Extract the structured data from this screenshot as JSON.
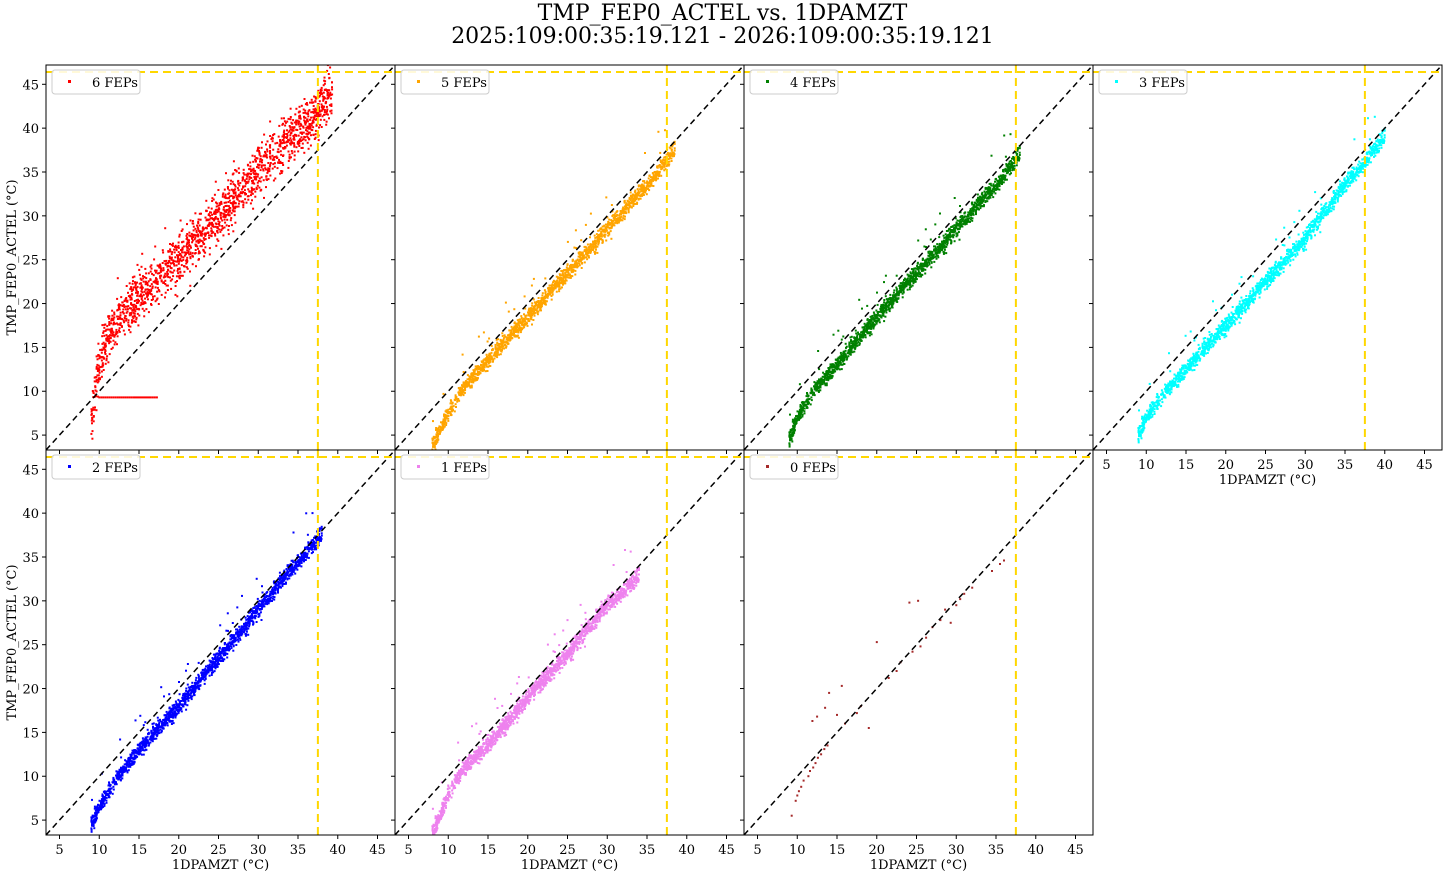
{
  "figure": {
    "title_line1": "TMP_FEP0_ACTEL vs. 1DPAMZT",
    "title_line2": "2025:109:00:35:19.121 - 2026:109:00:35:19.121"
  },
  "colors": {
    "reference_line": "#000000",
    "limit_line": "#ffd700",
    "axes": "#000000"
  },
  "chart_data": [
    {
      "type": "scatter",
      "legend": "6 FEPs",
      "color": "#ff0000",
      "xlabel": "",
      "ylabel": "TMP_FEP0_ACTEL (°C)",
      "xlim": [
        3.3,
        47.2
      ],
      "ylim": [
        3.3,
        47.2
      ],
      "xticks": [],
      "yticks": [
        5,
        10,
        15,
        20,
        25,
        30,
        35,
        40,
        45
      ],
      "reference_line": "y = x",
      "limit_lines": {
        "x": 37.5,
        "y": 47.2
      },
      "legend_position": "upper-left",
      "data_trend": [
        {
          "x": 9.0,
          "y": 6.5
        },
        {
          "x": 9.5,
          "y": 10.5
        },
        {
          "x": 10.0,
          "y": 13.0
        },
        {
          "x": 11.0,
          "y": 16.0
        },
        {
          "x": 12.0,
          "y": 17.5
        },
        {
          "x": 14.0,
          "y": 20.0
        },
        {
          "x": 17.0,
          "y": 22.5
        },
        {
          "x": 20.0,
          "y": 25.0
        },
        {
          "x": 24.0,
          "y": 29.0
        },
        {
          "x": 28.0,
          "y": 33.0
        },
        {
          "x": 32.0,
          "y": 37.0
        },
        {
          "x": 36.0,
          "y": 40.5
        },
        {
          "x": 39.3,
          "y": 44.0
        }
      ],
      "flat_segment": {
        "x": [
          10.0,
          17.3
        ],
        "y": 9.3
      }
    },
    {
      "type": "scatter",
      "legend": "5 FEPs",
      "color": "#ffa500",
      "xlabel": "",
      "ylabel": "",
      "xlim": [
        3.3,
        47.2
      ],
      "ylim": [
        3.3,
        47.2
      ],
      "xticks": [],
      "yticks": [],
      "reference_line": "y = x",
      "limit_lines": {
        "x": 37.5,
        "y": 47.2
      },
      "legend_position": "upper-left",
      "data_trend": [
        {
          "x": 8.0,
          "y": 3.8
        },
        {
          "x": 10.0,
          "y": 7.5
        },
        {
          "x": 12.0,
          "y": 10.5
        },
        {
          "x": 15.0,
          "y": 13.5
        },
        {
          "x": 20.0,
          "y": 18.5
        },
        {
          "x": 25.0,
          "y": 23.5
        },
        {
          "x": 30.0,
          "y": 28.5
        },
        {
          "x": 35.0,
          "y": 33.5
        },
        {
          "x": 38.5,
          "y": 37.5
        }
      ]
    },
    {
      "type": "scatter",
      "legend": "4 FEPs",
      "color": "#008000",
      "xlabel": "",
      "ylabel": "",
      "xlim": [
        3.3,
        47.2
      ],
      "ylim": [
        3.3,
        47.2
      ],
      "xticks": [],
      "yticks": [],
      "reference_line": "y = x",
      "limit_lines": {
        "x": 37.5,
        "y": 47.2
      },
      "legend_position": "upper-left",
      "data_trend": [
        {
          "x": 9.0,
          "y": 4.5
        },
        {
          "x": 10.0,
          "y": 7.0
        },
        {
          "x": 12.0,
          "y": 10.0
        },
        {
          "x": 15.0,
          "y": 13.0
        },
        {
          "x": 20.0,
          "y": 18.5
        },
        {
          "x": 25.0,
          "y": 23.5
        },
        {
          "x": 30.0,
          "y": 28.5
        },
        {
          "x": 35.0,
          "y": 33.5
        },
        {
          "x": 38.0,
          "y": 37.0
        }
      ]
    },
    {
      "type": "scatter",
      "legend": "3 FEPs",
      "color": "#00ffff",
      "xlabel": "1DPAMZT (°C)",
      "ylabel": "",
      "xlim": [
        3.3,
        47.2
      ],
      "ylim": [
        3.3,
        47.2
      ],
      "xticks": [
        5,
        10,
        15,
        20,
        25,
        30,
        35,
        40,
        45
      ],
      "yticks": [],
      "reference_line": "y = x",
      "limit_lines": {
        "x": 37.5,
        "y": 47.2
      },
      "legend_position": "upper-left",
      "data_trend": [
        {
          "x": 9.0,
          "y": 5.0
        },
        {
          "x": 10.0,
          "y": 7.0
        },
        {
          "x": 12.0,
          "y": 9.5
        },
        {
          "x": 15.0,
          "y": 12.5
        },
        {
          "x": 20.0,
          "y": 17.5
        },
        {
          "x": 25.0,
          "y": 22.5
        },
        {
          "x": 30.0,
          "y": 27.5
        },
        {
          "x": 35.0,
          "y": 33.5
        },
        {
          "x": 40.0,
          "y": 39.0
        }
      ]
    },
    {
      "type": "scatter",
      "legend": "2 FEPs",
      "color": "#0000ff",
      "xlabel": "1DPAMZT (°C)",
      "ylabel": "TMP_FEP0_ACTEL (°C)",
      "xlim": [
        3.3,
        47.2
      ],
      "ylim": [
        3.3,
        47.2
      ],
      "xticks": [
        5,
        10,
        15,
        20,
        25,
        30,
        35,
        40,
        45
      ],
      "yticks": [
        5,
        10,
        15,
        20,
        25,
        30,
        35,
        40,
        45
      ],
      "reference_line": "y = x",
      "limit_lines": {
        "x": 37.5,
        "y": 47.2
      },
      "legend_position": "upper-left",
      "data_trend": [
        {
          "x": 9.0,
          "y": 4.5
        },
        {
          "x": 10.0,
          "y": 6.5
        },
        {
          "x": 12.0,
          "y": 9.5
        },
        {
          "x": 15.0,
          "y": 13.0
        },
        {
          "x": 20.0,
          "y": 18.0
        },
        {
          "x": 25.0,
          "y": 23.5
        },
        {
          "x": 30.0,
          "y": 29.0
        },
        {
          "x": 35.0,
          "y": 34.5
        },
        {
          "x": 38.0,
          "y": 37.5
        }
      ]
    },
    {
      "type": "scatter",
      "legend": "1 FEPs",
      "color": "#ee82ee",
      "xlabel": "1DPAMZT (°C)",
      "ylabel": "",
      "xlim": [
        3.3,
        47.2
      ],
      "ylim": [
        3.3,
        47.2
      ],
      "xticks": [
        5,
        10,
        15,
        20,
        25,
        30,
        35,
        40,
        45
      ],
      "yticks": [],
      "reference_line": "y = x",
      "limit_lines": {
        "x": 37.5,
        "y": 47.2
      },
      "legend_position": "upper-left",
      "data_trend": [
        {
          "x": 8.0,
          "y": 3.5
        },
        {
          "x": 9.0,
          "y": 5.5
        },
        {
          "x": 10.0,
          "y": 8.0
        },
        {
          "x": 12.0,
          "y": 11.0
        },
        {
          "x": 15.0,
          "y": 13.5
        },
        {
          "x": 20.0,
          "y": 19.0
        },
        {
          "x": 25.0,
          "y": 24.0
        },
        {
          "x": 30.0,
          "y": 29.5
        },
        {
          "x": 34.0,
          "y": 32.8
        }
      ]
    },
    {
      "type": "scatter",
      "legend": "0 FEPs",
      "color": "#a52a2a",
      "xlabel": "1DPAMZT (°C)",
      "ylabel": "",
      "xlim": [
        3.3,
        47.2
      ],
      "ylim": [
        3.3,
        47.2
      ],
      "xticks": [
        5,
        10,
        15,
        20,
        25,
        30,
        35,
        40,
        45
      ],
      "yticks": [],
      "reference_line": "y = x",
      "limit_lines": {
        "x": 37.5,
        "y": 47.2
      },
      "legend_position": "upper-left",
      "points": [
        {
          "x": 9.3,
          "y": 5.5
        },
        {
          "x": 9.8,
          "y": 7.2
        },
        {
          "x": 10.0,
          "y": 7.8
        },
        {
          "x": 10.2,
          "y": 8.3
        },
        {
          "x": 10.5,
          "y": 8.8
        },
        {
          "x": 10.8,
          "y": 9.5
        },
        {
          "x": 11.4,
          "y": 10.0
        },
        {
          "x": 11.6,
          "y": 10.6
        },
        {
          "x": 12.0,
          "y": 11.0
        },
        {
          "x": 12.3,
          "y": 11.5
        },
        {
          "x": 12.6,
          "y": 12.1
        },
        {
          "x": 13.0,
          "y": 12.5
        },
        {
          "x": 13.4,
          "y": 13.1
        },
        {
          "x": 13.8,
          "y": 13.5
        },
        {
          "x": 11.9,
          "y": 16.3
        },
        {
          "x": 12.5,
          "y": 16.8
        },
        {
          "x": 13.5,
          "y": 17.8
        },
        {
          "x": 14.0,
          "y": 19.5
        },
        {
          "x": 15.6,
          "y": 20.3
        },
        {
          "x": 15.0,
          "y": 17.0
        },
        {
          "x": 16.0,
          "y": 16.0
        },
        {
          "x": 17.5,
          "y": 17.2
        },
        {
          "x": 18.0,
          "y": 18.0
        },
        {
          "x": 19.0,
          "y": 15.5
        },
        {
          "x": 20.0,
          "y": 25.3
        },
        {
          "x": 21.5,
          "y": 21.2
        },
        {
          "x": 22.5,
          "y": 22.0
        },
        {
          "x": 23.0,
          "y": 23.0
        },
        {
          "x": 24.1,
          "y": 29.8
        },
        {
          "x": 25.2,
          "y": 30.0
        },
        {
          "x": 24.5,
          "y": 24.2
        },
        {
          "x": 25.5,
          "y": 24.8
        },
        {
          "x": 26.2,
          "y": 25.8
        },
        {
          "x": 27.0,
          "y": 27.0
        },
        {
          "x": 28.0,
          "y": 27.8
        },
        {
          "x": 28.6,
          "y": 29.0
        },
        {
          "x": 29.3,
          "y": 27.5
        },
        {
          "x": 30.0,
          "y": 29.5
        },
        {
          "x": 30.5,
          "y": 30.2
        },
        {
          "x": 31.0,
          "y": 30.8
        },
        {
          "x": 32.0,
          "y": 31.5
        },
        {
          "x": 34.5,
          "y": 33.4
        },
        {
          "x": 35.5,
          "y": 34.2
        },
        {
          "x": 36.0,
          "y": 34.6
        }
      ]
    }
  ]
}
